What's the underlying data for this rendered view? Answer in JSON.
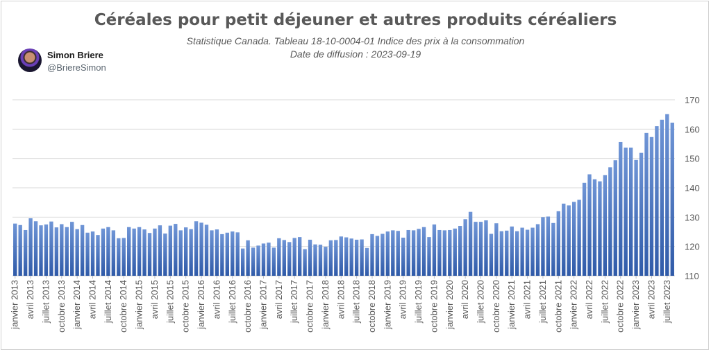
{
  "header": {
    "title": "Céréales pour petit déjeuner et autres produits céréaliers",
    "subtitle_line1": "Statistique Canada. Tableau 18-10-0004-01  Indice des prix à la consommation",
    "subtitle_line2": "Date de diffusion : 2023-09-19"
  },
  "author": {
    "name": "Simon Briere",
    "handle": "@BriereSimon"
  },
  "colors": {
    "bar_top": "#6f95d6",
    "bar_bottom": "#2f5aa8",
    "gridline": "#d9d9d9",
    "text": "#595959"
  },
  "chart_data": {
    "type": "bar",
    "title": "Céréales pour petit déjeuner et autres produits céréaliers",
    "xlabel": "",
    "ylabel": "",
    "ylim": [
      110,
      170
    ],
    "yticks": [
      110,
      120,
      130,
      140,
      150,
      160,
      170
    ],
    "y_axis_side": "right",
    "grid": true,
    "legend": "none",
    "x_tick_labels": [
      "janvier 2013",
      "avril 2013",
      "juillet 2013",
      "octobre 2013",
      "janvier 2014",
      "avril 2014",
      "juillet 2014",
      "octobre 2014",
      "janvier 2015",
      "avril 2015",
      "juillet 2015",
      "octobre 2015",
      "janvier 2016",
      "avril 2016",
      "juillet 2016",
      "octobre 2016",
      "janvier 2017",
      "avril 2017",
      "juillet 2017",
      "octobre 2017",
      "janvier 2018",
      "avril 2018",
      "juillet 2018",
      "octobre 2018",
      "janvier 2019",
      "avril 2019",
      "juillet 2019",
      "octobre 2019",
      "janvier 2020",
      "avril 2020",
      "juillet 2020",
      "octobre 2020",
      "janvier 2021",
      "avril 2021",
      "juillet 2021",
      "octobre 2021",
      "janvier 2022",
      "avril 2022",
      "juillet 2022",
      "octobre 2022",
      "janvier 2023",
      "avril 2023",
      "juillet 2023"
    ],
    "values": [
      127.8,
      127.3,
      125.6,
      129.6,
      128.6,
      127.2,
      127.5,
      128.5,
      126.5,
      127.6,
      126.6,
      128.4,
      125.9,
      127.3,
      124.7,
      125.1,
      123.9,
      126.1,
      126.6,
      125.5,
      122.8,
      122.9,
      126.6,
      126.1,
      126.6,
      125.8,
      124.6,
      126.1,
      127.2,
      124.4,
      127.1,
      127.7,
      125.5,
      126.5,
      125.9,
      128.6,
      128.1,
      127.4,
      125.5,
      125.8,
      124.2,
      124.7,
      125.1,
      124.8,
      119.3,
      122.1,
      119.6,
      120.3,
      121.0,
      121.3,
      119.6,
      122.8,
      122.2,
      121.5,
      122.9,
      123.2,
      119.1,
      122.3,
      120.7,
      120.6,
      119.9,
      122.1,
      122.2,
      123.4,
      123.1,
      122.7,
      122.3,
      122.4,
      119.5,
      124.2,
      123.6,
      124.3,
      125.1,
      125.5,
      125.3,
      123.0,
      125.6,
      125.5,
      126.0,
      126.6,
      123.2,
      127.5,
      125.6,
      125.5,
      125.6,
      126.1,
      127.0,
      129.3,
      131.8,
      128.4,
      128.4,
      128.9,
      124.3,
      127.9,
      125.2,
      125.4,
      126.8,
      125.2,
      126.4,
      125.7,
      126.4,
      127.6,
      130.0,
      130.2,
      128.0,
      132.0,
      134.6,
      134.0,
      135.2,
      135.9,
      141.7,
      144.6,
      142.9,
      142.2,
      144.3,
      147.0,
      149.4,
      155.6,
      153.7,
      153.7,
      149.5,
      151.9,
      158.7,
      157.3,
      161.0,
      163.2,
      165.1,
      162.2
    ]
  }
}
